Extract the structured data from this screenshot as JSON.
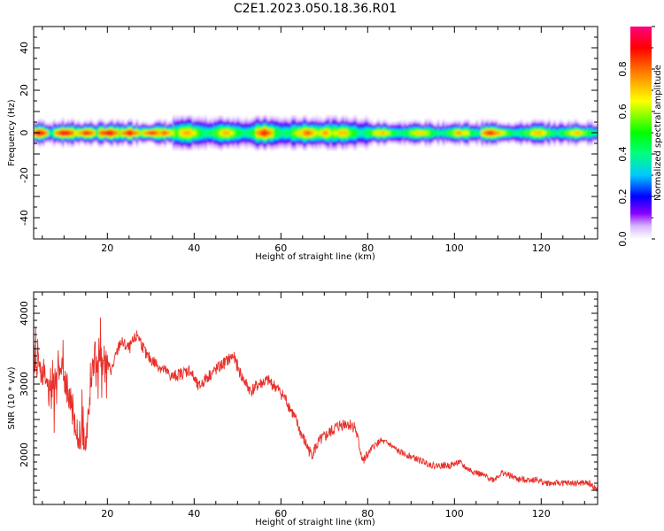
{
  "figure": {
    "title": "C2E1.2023.050.18.36.R01"
  },
  "chart_data": [
    {
      "type": "heatmap",
      "xlabel": "Height of straight line (km)",
      "ylabel": "Frequency (Hz)",
      "xlim": [
        3,
        133
      ],
      "ylim": [
        -50,
        50
      ],
      "xticks": [
        20,
        40,
        60,
        80,
        100,
        120
      ],
      "yticks": [
        40,
        20,
        0,
        -20,
        -40
      ],
      "colorbar": {
        "label": "Normalized spectral amplitude",
        "range": [
          0,
          1
        ],
        "ticks": [
          "0.0",
          "0.2",
          "0.4",
          "0.6",
          "0.8"
        ],
        "colormap": [
          "#ffffff",
          "#d8b8ff",
          "#8a00ff",
          "#0000ff",
          "#00c8ff",
          "#00ff80",
          "#00ff00",
          "#ffff00",
          "#ff8000",
          "#ff0000",
          "#ff0080"
        ]
      },
      "peaks": [
        {
          "x": 4,
          "freq": 0,
          "amp": 0.95
        },
        {
          "x": 10,
          "freq": 1.5,
          "amp": 0.95
        },
        {
          "x": 15,
          "freq": 0,
          "amp": 0.9
        },
        {
          "x": 20,
          "freq": 0,
          "amp": 0.95
        },
        {
          "x": 25,
          "freq": 0,
          "amp": 0.92
        },
        {
          "x": 30,
          "freq": 0,
          "amp": 0.9
        },
        {
          "x": 33,
          "freq": 0,
          "amp": 0.85
        },
        {
          "x": 56,
          "freq": 0,
          "amp": 0.9
        },
        {
          "x": 66,
          "freq": 0,
          "amp": 0.85
        },
        {
          "x": 70,
          "freq": 0,
          "amp": 0.8
        },
        {
          "x": 108,
          "freq": 0,
          "amp": 0.9
        }
      ],
      "band_halfwidth_hz": 4
    },
    {
      "type": "line",
      "xlabel": "Height of straight line (km)",
      "ylabel": "SNR (10 * v/v)",
      "xlim": [
        3,
        133
      ],
      "ylim": [
        1300,
        4300
      ],
      "xticks": [
        20,
        40,
        60,
        80,
        100,
        120
      ],
      "yticks": [
        4000,
        3000,
        2000
      ],
      "color": "#e8302a",
      "series": [
        {
          "x": [
            3,
            5,
            7,
            9,
            11,
            13,
            15,
            17,
            19,
            21,
            23,
            25,
            27,
            29,
            31,
            33,
            35,
            37,
            39,
            41,
            43,
            45,
            47,
            49,
            51,
            53,
            55,
            57,
            59,
            61,
            63,
            65,
            67,
            69,
            71,
            73,
            75,
            77,
            79,
            81,
            83,
            85,
            87,
            89,
            91,
            93,
            95,
            97,
            99,
            101,
            103,
            105,
            107,
            109,
            111,
            113,
            115,
            117,
            119,
            121,
            123,
            125,
            127,
            129,
            131,
            133
          ],
          "y": [
            3400,
            3200,
            2800,
            3300,
            2900,
            2300,
            2200,
            3400,
            3300,
            3200,
            3600,
            3500,
            3700,
            3400,
            3300,
            3200,
            3100,
            3150,
            3200,
            2950,
            3100,
            3200,
            3300,
            3400,
            3100,
            2900,
            3000,
            3050,
            2950,
            2800,
            2550,
            2250,
            2000,
            2200,
            2300,
            2400,
            2450,
            2400,
            1900,
            2100,
            2200,
            2150,
            2050,
            2000,
            1950,
            1900,
            1850,
            1850,
            1850,
            1900,
            1800,
            1750,
            1700,
            1650,
            1750,
            1700,
            1650,
            1650,
            1650,
            1600,
            1600,
            1600,
            1600,
            1600,
            1600,
            1500
          ]
        }
      ]
    }
  ]
}
